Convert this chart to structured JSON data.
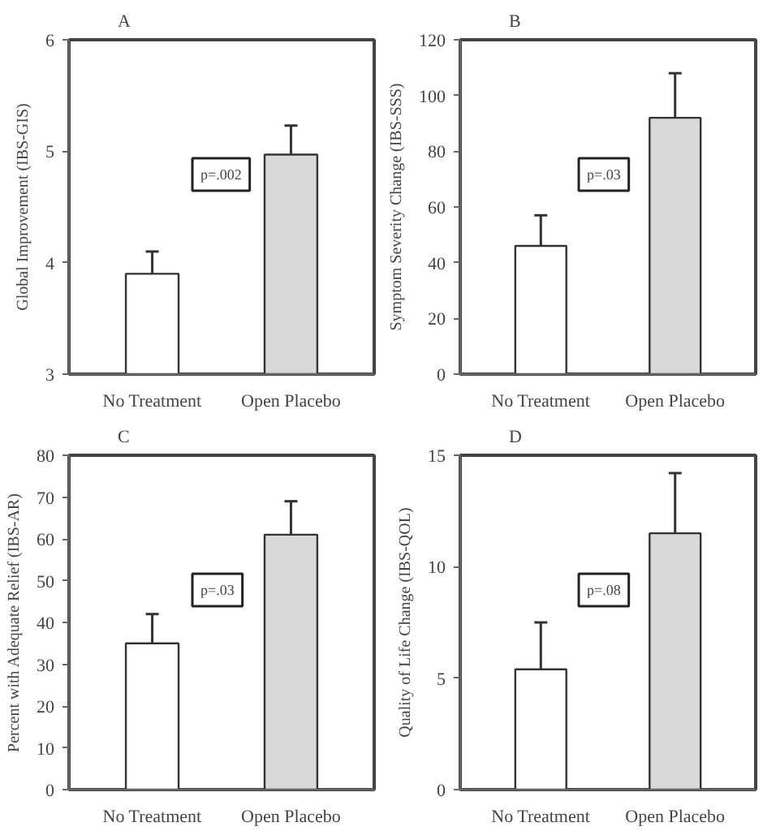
{
  "chart_data": [
    {
      "type": "bar",
      "title": "A",
      "ylabel": "Global Improvement (IBS-GIS)",
      "categories": [
        "No Treatment",
        "Open Placebo"
      ],
      "values": [
        3.9,
        4.97
      ],
      "colors": [
        "#ffffff",
        "#d9d9d9"
      ],
      "errors": [
        [
          3.9,
          4.1
        ],
        [
          4.97,
          5.23
        ]
      ],
      "ylim": [
        3,
        6
      ],
      "yticks": [
        3,
        4,
        5,
        6
      ],
      "grid": false,
      "annotations": [
        "p=.002"
      ]
    },
    {
      "type": "bar",
      "title": "B",
      "ylabel": "Symptom Severity Change (IBS-SSS)",
      "categories": [
        "No Treatment",
        "Open Placebo"
      ],
      "values": [
        46,
        92
      ],
      "colors": [
        "#ffffff",
        "#d9d9d9"
      ],
      "errors": [
        [
          46,
          57
        ],
        [
          92,
          108
        ]
      ],
      "ylim": [
        0,
        120
      ],
      "yticks": [
        0,
        20,
        40,
        60,
        80,
        100,
        120
      ],
      "grid": false,
      "annotations": [
        "p=.03"
      ]
    },
    {
      "type": "bar",
      "title": "C",
      "ylabel": "Percent with Adequate Relief (IBS-AR)",
      "categories": [
        "No Treatment",
        "Open Placebo"
      ],
      "values": [
        35,
        61
      ],
      "colors": [
        "#ffffff",
        "#d9d9d9"
      ],
      "errors": [
        [
          35,
          42
        ],
        [
          61,
          69
        ]
      ],
      "ylim": [
        0,
        80
      ],
      "yticks": [
        0,
        10,
        20,
        30,
        40,
        50,
        60,
        70,
        80
      ],
      "grid": false,
      "annotations": [
        "p=.03"
      ]
    },
    {
      "type": "bar",
      "title": "D",
      "ylabel": "Quality of Life Change (IBS-QOL)",
      "categories": [
        "No Treatment",
        "Open Placebo"
      ],
      "values": [
        5.4,
        11.5
      ],
      "colors": [
        "#ffffff",
        "#d9d9d9"
      ],
      "errors": [
        [
          5.4,
          7.5
        ],
        [
          11.5,
          14.2
        ]
      ],
      "ylim": [
        0,
        15
      ],
      "yticks": [
        0,
        5,
        10,
        15
      ],
      "grid": false,
      "annotations": [
        "p=.08"
      ]
    }
  ]
}
